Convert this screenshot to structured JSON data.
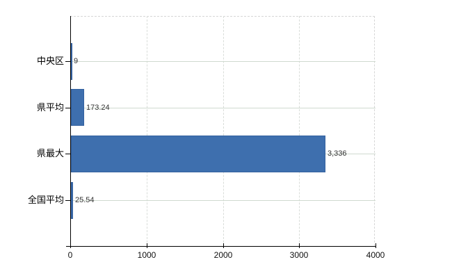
{
  "chart_data": {
    "type": "bar",
    "orientation": "horizontal",
    "title": "",
    "xlabel": "",
    "ylabel": "",
    "legend": "none",
    "grid": "on",
    "categories": [
      "中央区",
      "県平均",
      "県最大",
      "全国平均"
    ],
    "values": [
      9,
      173.24,
      3336,
      25.54
    ],
    "value_labels": [
      "9",
      "173.24",
      "3,336",
      "25.54"
    ],
    "xlim": [
      0,
      4000
    ],
    "xticks": [
      0,
      1000,
      2000,
      3000,
      4000
    ],
    "xtick_labels": [
      "0",
      "1000",
      "2000",
      "3000",
      "4000"
    ],
    "colors": {
      "bar_fill": "#3e6fae",
      "bar_border": "#34619f",
      "gridline_horizontal": "#cfdacf",
      "gridline_vertical": "#d9ddd9",
      "axis": "#000000",
      "value_label": "#333333",
      "tick_label": "#111111",
      "background": "#ffffff"
    }
  }
}
